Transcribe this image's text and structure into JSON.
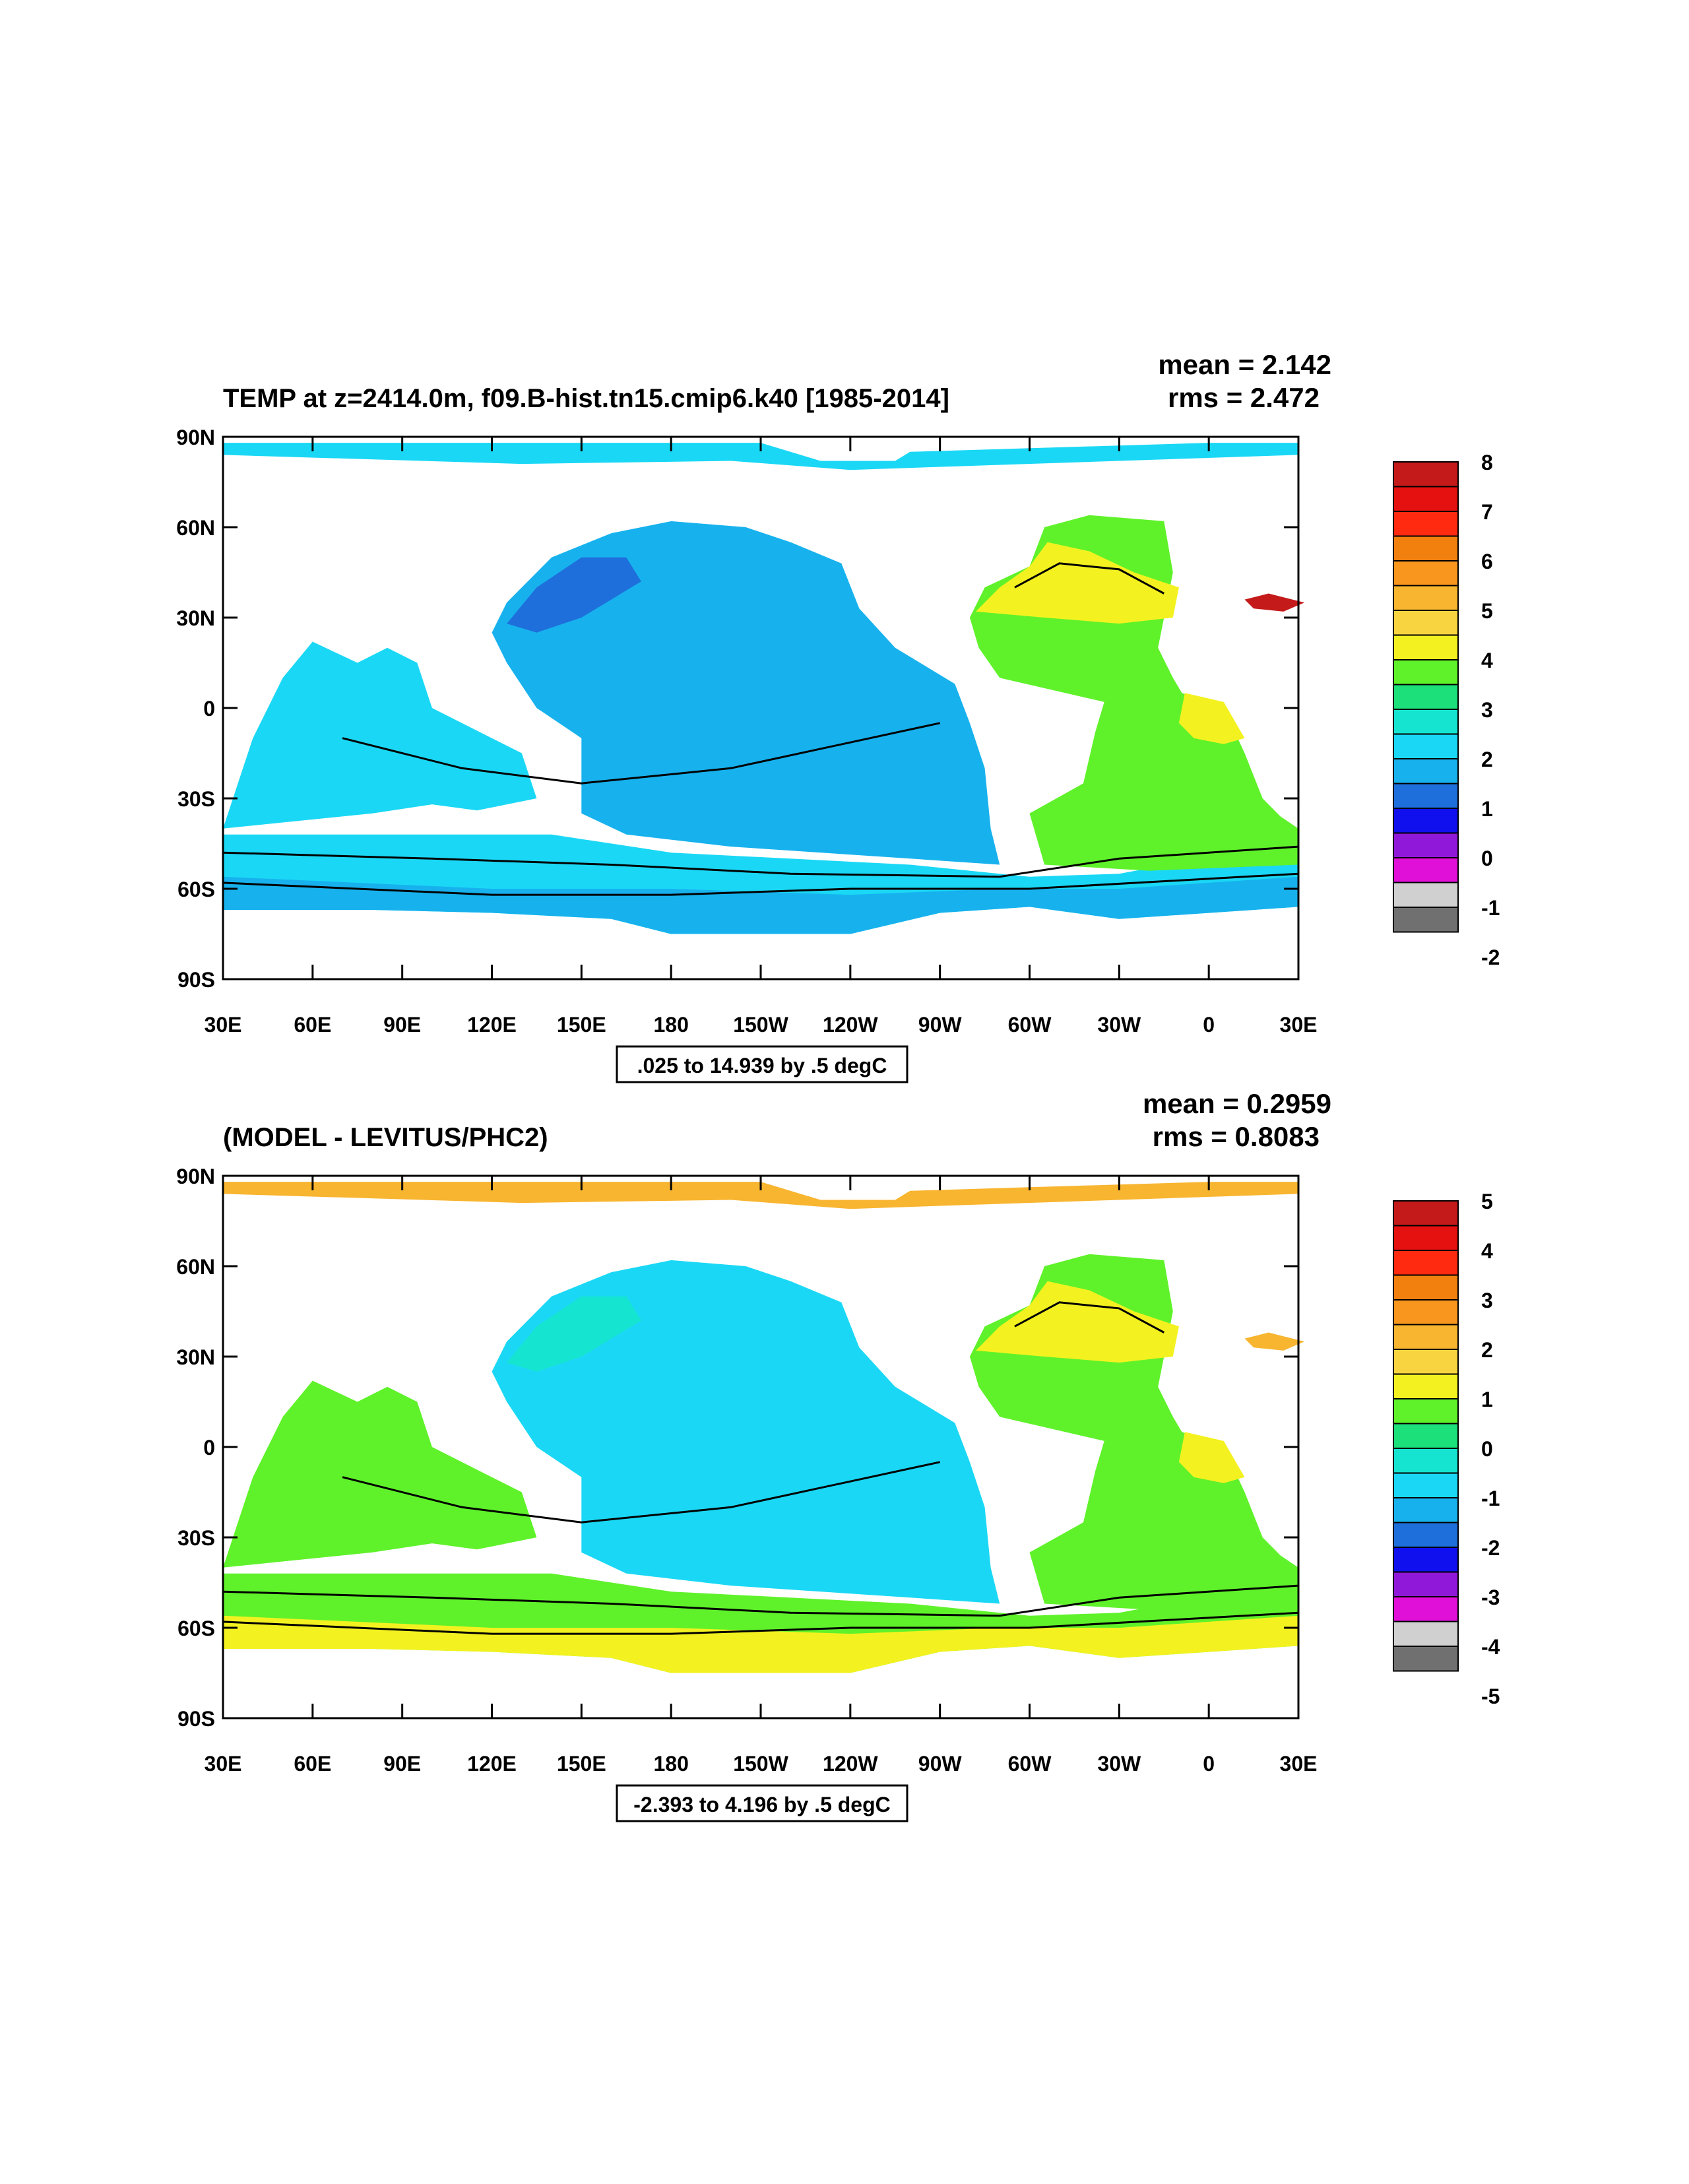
{
  "panels": [
    {
      "title": "TEMP at z=2414.0m, f09.B-hist.tn15.cmip6.k40 [1985-2014]",
      "mean_text": "mean = 2.142",
      "rms_text": "rms = 2.472",
      "contour_info": ".025 to 14.939 by .5 degC",
      "colorbar_labels": [
        "8",
        "7",
        "6",
        "5",
        "4",
        "3",
        "2",
        "1",
        "0",
        "-1",
        "-2"
      ],
      "field": {
        "pacific": "#17b2ee",
        "north_pacific": "#1e6fdb",
        "indian": "#1ad8f5",
        "southern": "#1ad8f5",
        "southern_low": "#17b2ee",
        "atlantic": "#5ff22a",
        "north_atlantic": "#f3f220",
        "south_atlantic_patch": "#f3f220",
        "arctic": "#1ad8f5",
        "mediterranean": "#c41a1a"
      }
    },
    {
      "title": "(MODEL - LEVITUS/PHC2)",
      "mean_text": "mean = 0.2959",
      "rms_text": "rms = 0.8083",
      "contour_info": "-2.393 to 4.196 by .5 degC",
      "colorbar_labels": [
        "5",
        "4",
        "3",
        "2",
        "1",
        "0",
        "-1",
        "-2",
        "-3",
        "-4",
        "-5"
      ],
      "field": {
        "pacific": "#1ad8f5",
        "north_pacific": "#15e5d0",
        "indian": "#5ff22a",
        "southern": "#5ff22a",
        "southern_low": "#f3f220",
        "atlantic": "#5ff22a",
        "north_atlantic": "#f3f220",
        "south_atlantic_patch": "#f3f220",
        "arctic": "#f8b530",
        "mediterranean": "#f8b530"
      }
    }
  ],
  "colorbar_colors": [
    "#c41a1a",
    "#e51010",
    "#ff2a10",
    "#f2800f",
    "#f8961e",
    "#f8b530",
    "#f8d440",
    "#f3f220",
    "#5ff22a",
    "#1ce07a",
    "#15e5d0",
    "#1ad8f5",
    "#17b2ee",
    "#1e6fdb",
    "#1010ee",
    "#9018d8",
    "#e010d8",
    "#d0d0d0",
    "#707070"
  ],
  "x_ticks": [
    "30E",
    "60E",
    "90E",
    "120E",
    "150E",
    "180",
    "150W",
    "120W",
    "90W",
    "60W",
    "30W",
    "0",
    "30E"
  ],
  "y_ticks": [
    "90N",
    "60N",
    "30N",
    "0",
    "30S",
    "60S",
    "90S"
  ]
}
